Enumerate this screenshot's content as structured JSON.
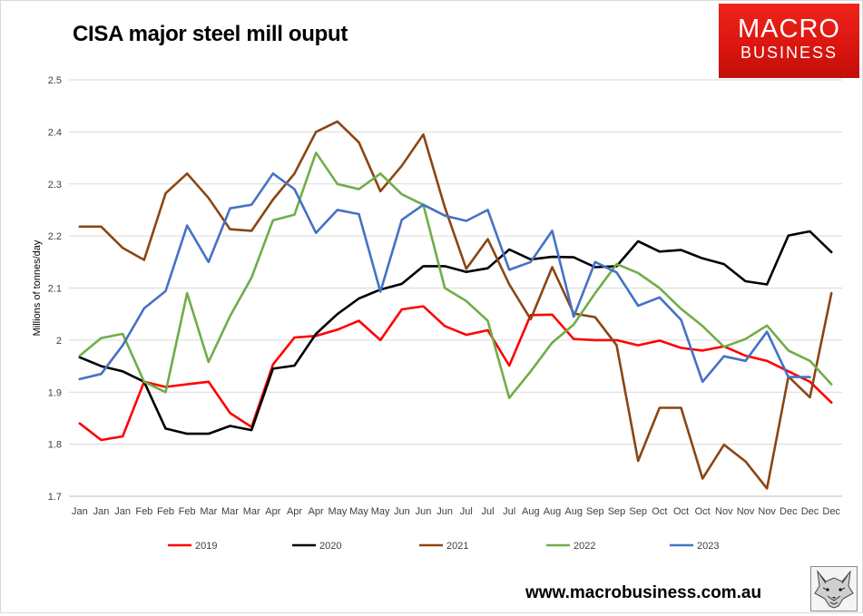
{
  "header": {
    "title": "CISA major steel mill ouput",
    "logo_line1": "MACRO",
    "logo_line2": "BUSINESS",
    "logo_colors": [
      "#e8211b",
      "#ffffff"
    ]
  },
  "footer": {
    "url": "www.macrobusiness.com.au",
    "wolf_icon": "wolf-head-icon"
  },
  "chart_data": {
    "type": "line",
    "title": "CISA major steel mill ouput",
    "xlabel": "",
    "ylabel": "Millions of tonnes/day",
    "ylim": [
      1.7,
      2.5
    ],
    "yticks": [
      "1.7",
      "1.8",
      "1.9",
      "2",
      "2.1",
      "2.2",
      "2.3",
      "2.4",
      "2.5"
    ],
    "grid": true,
    "legend_position": "bottom",
    "categories": [
      "Jan",
      "Jan",
      "Jan",
      "Feb",
      "Feb",
      "Feb",
      "Mar",
      "Mar",
      "Mar",
      "Apr",
      "Apr",
      "Apr",
      "May",
      "May",
      "May",
      "Jun",
      "Jun",
      "Jun",
      "Jul",
      "Jul",
      "Jul",
      "Aug",
      "Aug",
      "Aug",
      "Sep",
      "Sep",
      "Sep",
      "Oct",
      "Oct",
      "Oct",
      "Nov",
      "Nov",
      "Nov",
      "Dec",
      "Dec",
      "Dec"
    ],
    "series": [
      {
        "name": "2019",
        "color": "#ff0000",
        "values": [
          1.84,
          1.808,
          1.815,
          1.92,
          1.91,
          1.915,
          1.92,
          1.86,
          1.833,
          1.953,
          2.005,
          2.008,
          2.02,
          2.037,
          2.0,
          2.059,
          2.065,
          2.027,
          2.01,
          2.019,
          1.951,
          2.048,
          2.049,
          2.002,
          2.0,
          2.0,
          1.99,
          1.999,
          1.985,
          1.98,
          1.988,
          1.97,
          1.96,
          1.94,
          1.92,
          1.88
        ]
      },
      {
        "name": "2020",
        "color": "#000000",
        "values": [
          1.967,
          1.95,
          1.94,
          1.92,
          1.83,
          1.82,
          1.82,
          1.835,
          1.827,
          1.945,
          1.951,
          2.012,
          2.05,
          2.08,
          2.097,
          2.108,
          2.142,
          2.142,
          2.131,
          2.138,
          2.174,
          2.155,
          2.16,
          2.159,
          2.14,
          2.142,
          2.19,
          2.17,
          2.173,
          2.157,
          2.146,
          2.113,
          2.107,
          2.201,
          2.209,
          2.169
        ]
      },
      {
        "name": "2021",
        "color": "#8b4513",
        "values": [
          2.218,
          2.218,
          2.177,
          2.154,
          2.282,
          2.32,
          2.273,
          2.213,
          2.21,
          2.27,
          2.32,
          2.4,
          2.42,
          2.38,
          2.286,
          2.335,
          2.395,
          2.255,
          2.137,
          2.194,
          2.107,
          2.04,
          2.14,
          2.051,
          2.044,
          1.99,
          1.768,
          1.87,
          1.87,
          1.734,
          1.799,
          1.767,
          1.715,
          1.93,
          1.89,
          2.09
        ]
      },
      {
        "name": "2022",
        "color": "#70ad47",
        "values": [
          1.97,
          2.004,
          2.012,
          1.92,
          1.9,
          2.09,
          1.958,
          2.046,
          2.12,
          2.23,
          2.241,
          2.36,
          2.3,
          2.29,
          2.32,
          2.28,
          2.26,
          2.1,
          2.075,
          2.037,
          1.889,
          1.94,
          1.995,
          2.03,
          2.09,
          2.146,
          2.129,
          2.1,
          2.06,
          2.027,
          1.987,
          2.002,
          2.028,
          1.98,
          1.96,
          1.915
        ]
      },
      {
        "name": "2023",
        "color": "#4472c4",
        "values": [
          1.925,
          1.935,
          1.99,
          2.061,
          2.094,
          2.22,
          2.15,
          2.253,
          2.26,
          2.32,
          2.29,
          2.206,
          2.25,
          2.242,
          2.093,
          2.231,
          2.26,
          2.239,
          2.229,
          2.25,
          2.135,
          2.15,
          2.21,
          2.045,
          2.15,
          2.13,
          2.066,
          2.082,
          2.039,
          1.92,
          1.969,
          1.96,
          2.016,
          1.929,
          1.929,
          null
        ]
      }
    ]
  }
}
